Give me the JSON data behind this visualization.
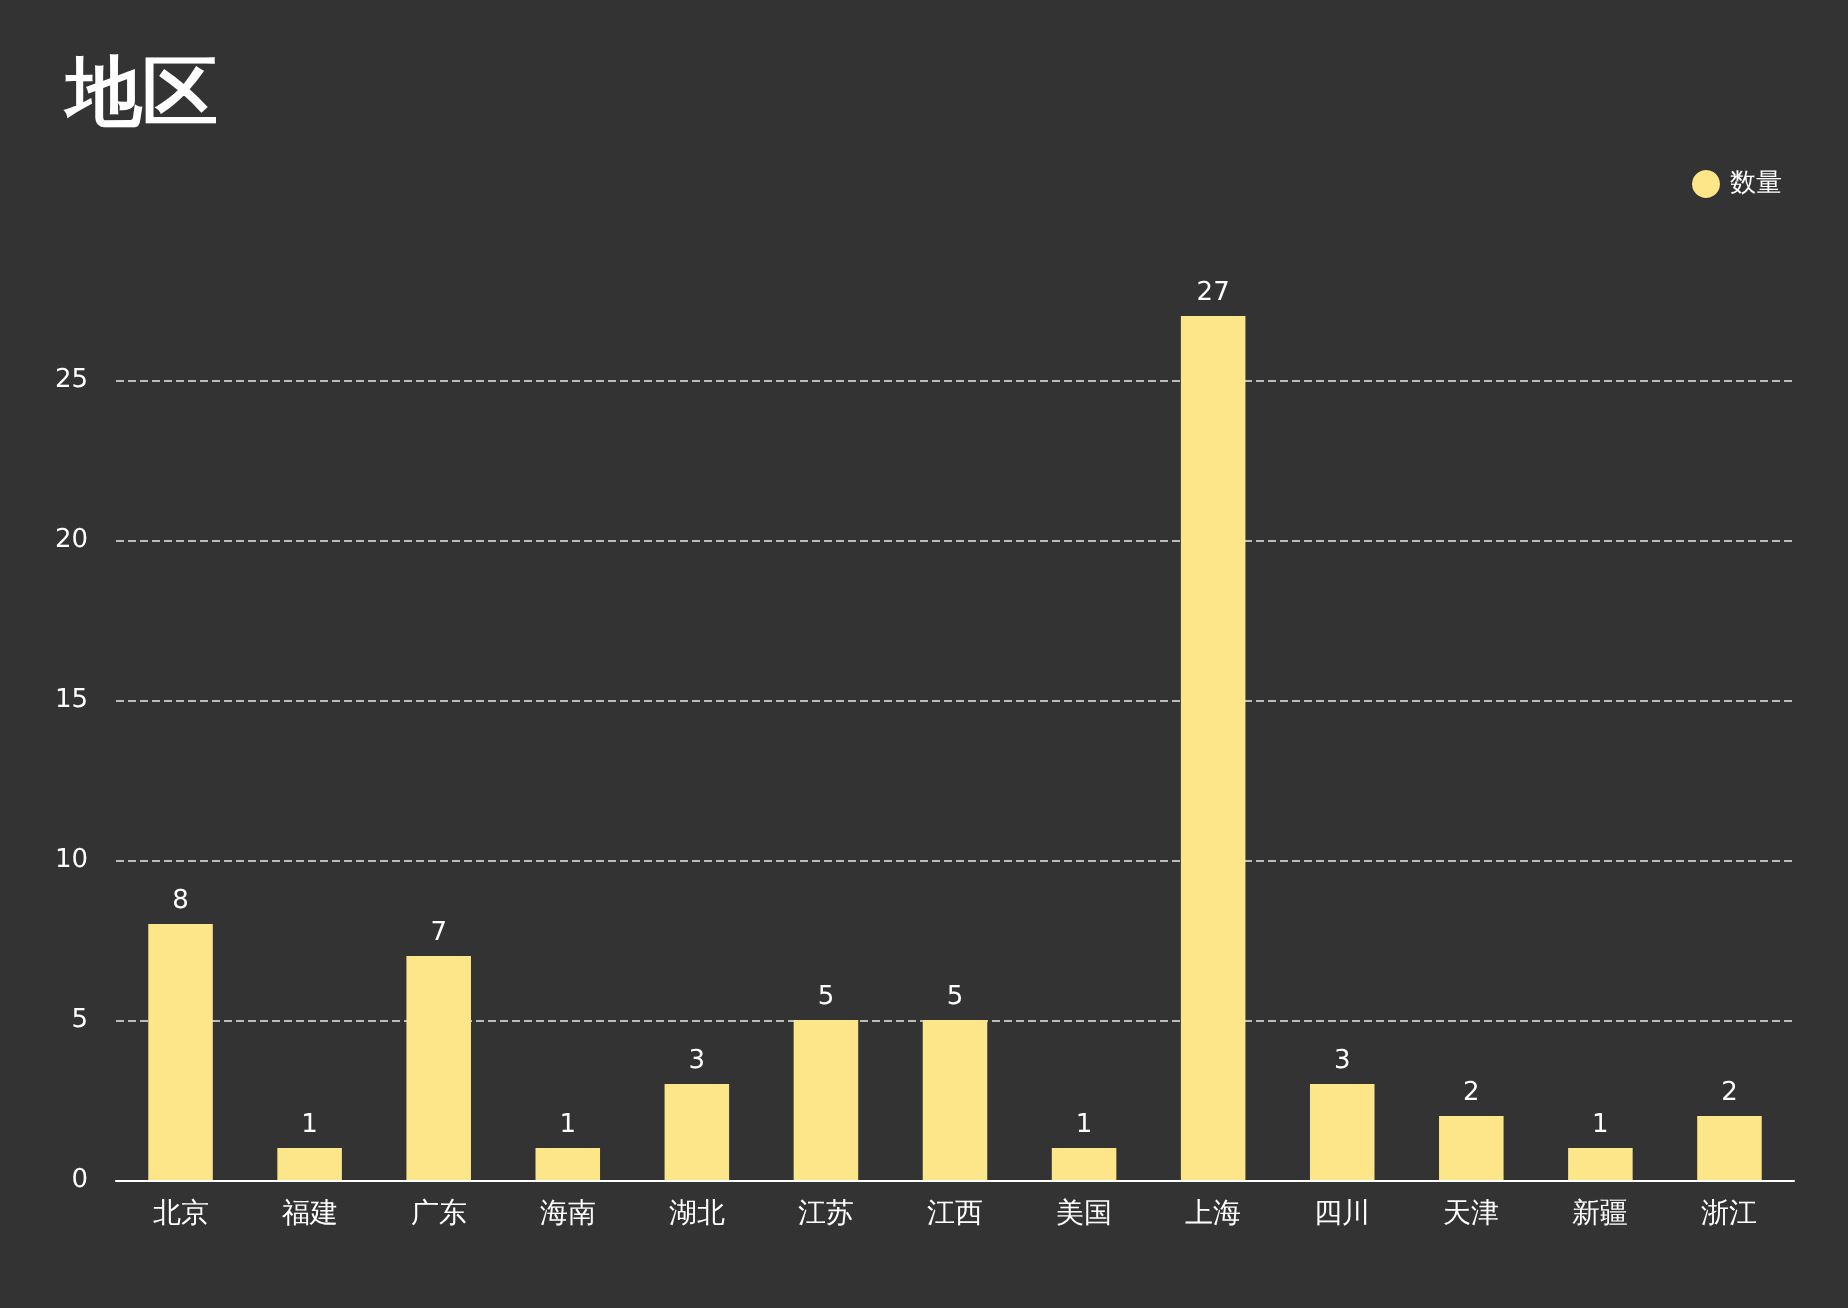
{
  "chart_data": {
    "type": "bar",
    "title": "地区",
    "categories": [
      "北京",
      "福建",
      "广东",
      "海南",
      "湖北",
      "江苏",
      "江西",
      "美国",
      "上海",
      "四川",
      "天津",
      "新疆",
      "浙江"
    ],
    "series": [
      {
        "name": "数量",
        "color": "#fde68a",
        "values": [
          8,
          1,
          7,
          1,
          3,
          5,
          5,
          1,
          27,
          3,
          2,
          1,
          2
        ]
      }
    ],
    "ylim": [
      0,
      27
    ],
    "yticks": [
      0,
      5,
      10,
      15,
      20,
      25
    ],
    "grid": "y",
    "legend": "top right",
    "data_labels": true
  }
}
